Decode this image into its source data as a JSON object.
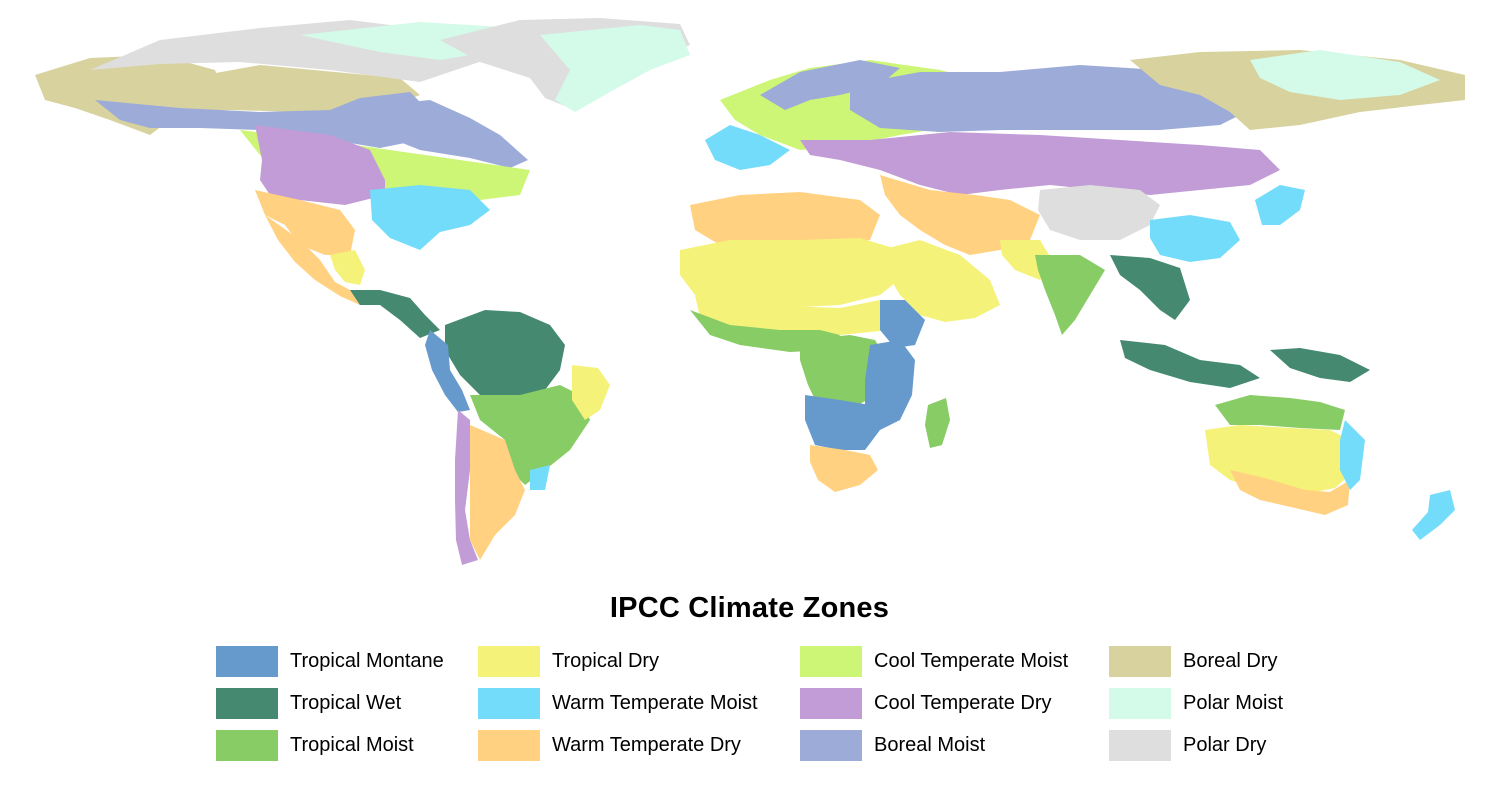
{
  "title": "IPCC Climate Zones",
  "legend": [
    {
      "key": "tropical_montane",
      "label": "Tropical Montane",
      "color": "#6699cc"
    },
    {
      "key": "tropical_wet",
      "label": "Tropical Wet",
      "color": "#458970"
    },
    {
      "key": "tropical_moist",
      "label": "Tropical Moist",
      "color": "#88cc66"
    },
    {
      "key": "tropical_dry",
      "label": "Tropical Dry",
      "color": "#f5f27a"
    },
    {
      "key": "warm_temperate_moist",
      "label": "Warm Temperate Moist",
      "color": "#72dcfa"
    },
    {
      "key": "warm_temperate_dry",
      "label": "Warm Temperate Dry",
      "color": "#ffd180"
    },
    {
      "key": "cool_temperate_moist",
      "label": "Cool Temperate Moist",
      "color": "#cdf576"
    },
    {
      "key": "cool_temperate_dry",
      "label": "Cool Temperate Dry",
      "color": "#c29cd6"
    },
    {
      "key": "boreal_moist",
      "label": "Boreal Moist",
      "color": "#9cabd8"
    },
    {
      "key": "boreal_dry",
      "label": "Boreal Dry",
      "color": "#d8d29e"
    },
    {
      "key": "polar_moist",
      "label": "Polar Moist",
      "color": "#d4fae9"
    },
    {
      "key": "polar_dry",
      "label": "Polar Dry",
      "color": "#dedede"
    }
  ],
  "map": {
    "ocean_color": "#ffffff",
    "regions": [
      {
        "name": "greenland",
        "zone": "polar_dry"
      },
      {
        "name": "greenland-coast",
        "zone": "polar_moist"
      },
      {
        "name": "arctic-canada",
        "zone": "polar_dry"
      },
      {
        "name": "arctic-canada-moist",
        "zone": "polar_moist"
      },
      {
        "name": "alaska",
        "zone": "boreal_dry"
      },
      {
        "name": "canada-north",
        "zone": "boreal_dry"
      },
      {
        "name": "canada-boreal",
        "zone": "boreal_moist"
      },
      {
        "name": "canada-east",
        "zone": "boreal_moist"
      },
      {
        "name": "north-america-cool-moist",
        "zone": "cool_temperate_moist"
      },
      {
        "name": "north-america-cool-dry",
        "zone": "cool_temperate_dry"
      },
      {
        "name": "us-southwest",
        "zone": "warm_temperate_dry"
      },
      {
        "name": "us-southeast",
        "zone": "warm_temperate_moist"
      },
      {
        "name": "mexico",
        "zone": "warm_temperate_dry"
      },
      {
        "name": "mexico-south",
        "zone": "tropical_dry"
      },
      {
        "name": "central-america",
        "zone": "tropical_wet"
      },
      {
        "name": "amazon",
        "zone": "tropical_wet"
      },
      {
        "name": "brazil",
        "zone": "tropical_moist"
      },
      {
        "name": "brazil-northeast",
        "zone": "tropical_dry"
      },
      {
        "name": "andes",
        "zone": "tropical_montane"
      },
      {
        "name": "andes-south",
        "zone": "cool_temperate_dry"
      },
      {
        "name": "south-america-south",
        "zone": "warm_temperate_dry"
      },
      {
        "name": "south-brazil",
        "zone": "warm_temperate_moist"
      },
      {
        "name": "europe-south",
        "zone": "warm_temperate_dry"
      },
      {
        "name": "europe-central",
        "zone": "cool_temperate_moist"
      },
      {
        "name": "europe-west",
        "zone": "warm_temperate_moist"
      },
      {
        "name": "scandinavia",
        "zone": "boreal_moist"
      },
      {
        "name": "russia-boreal",
        "zone": "boreal_moist"
      },
      {
        "name": "siberia",
        "zone": "boreal_dry"
      },
      {
        "name": "arctic-russia",
        "zone": "polar_moist"
      },
      {
        "name": "central-asia",
        "zone": "cool_temperate_dry"
      },
      {
        "name": "middle-east",
        "zone": "warm_temperate_dry"
      },
      {
        "name": "tibet",
        "zone": "polar_dry"
      },
      {
        "name": "china-south",
        "zone": "warm_temperate_moist"
      },
      {
        "name": "japan",
        "zone": "warm_temperate_moist"
      },
      {
        "name": "sahara",
        "zone": "tropical_dry"
      },
      {
        "name": "north-africa",
        "zone": "warm_temperate_dry"
      },
      {
        "name": "sahel",
        "zone": "tropical_dry"
      },
      {
        "name": "west-africa",
        "zone": "tropical_moist"
      },
      {
        "name": "congo",
        "zone": "tropical_moist"
      },
      {
        "name": "east-africa",
        "zone": "tropical_montane"
      },
      {
        "name": "ethiopia",
        "zone": "tropical_montane"
      },
      {
        "name": "southern-africa",
        "zone": "tropical_montane"
      },
      {
        "name": "south-africa",
        "zone": "warm_temperate_dry"
      },
      {
        "name": "madagascar",
        "zone": "tropical_moist"
      },
      {
        "name": "arabia",
        "zone": "tropical_dry"
      },
      {
        "name": "india",
        "zone": "tropical_moist"
      },
      {
        "name": "india-northwest",
        "zone": "tropical_dry"
      },
      {
        "name": "southeast-asia",
        "zone": "tropical_wet"
      },
      {
        "name": "indonesia",
        "zone": "tropical_wet"
      },
      {
        "name": "new-guinea",
        "zone": "tropical_wet"
      },
      {
        "name": "australia",
        "zone": "tropical_dry"
      },
      {
        "name": "australia-south",
        "zone": "warm_temperate_dry"
      },
      {
        "name": "australia-north",
        "zone": "tropical_moist"
      },
      {
        "name": "australia-east",
        "zone": "warm_temperate_moist"
      },
      {
        "name": "new-zealand",
        "zone": "warm_temperate_moist"
      }
    ]
  }
}
